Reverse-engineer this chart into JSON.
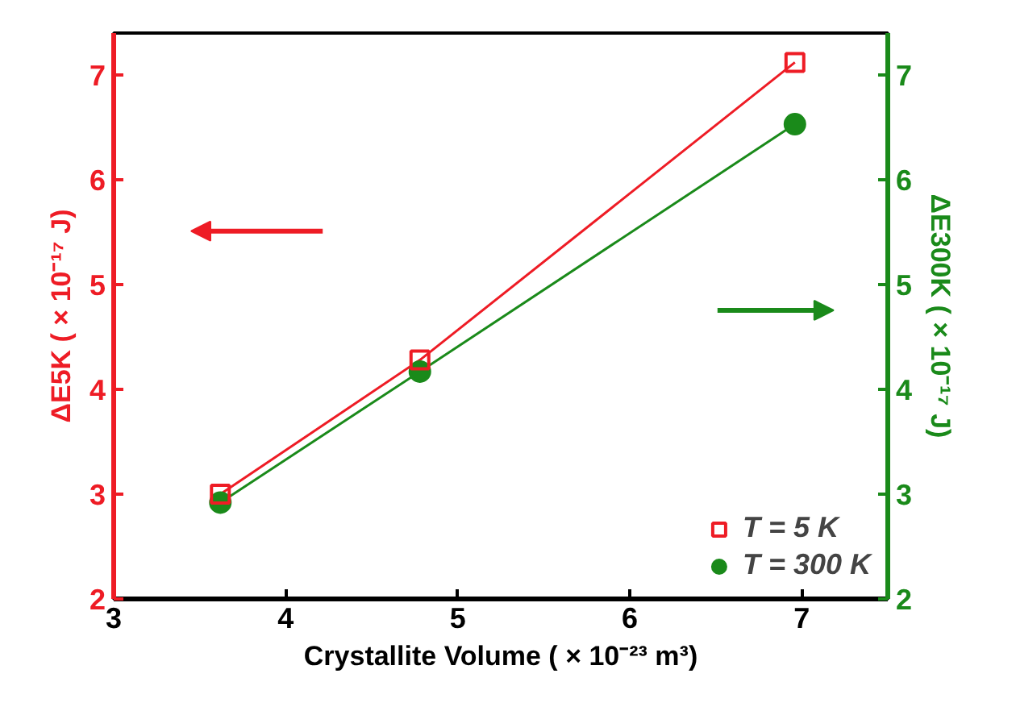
{
  "chart_data": {
    "type": "line",
    "xlabel": "Crystallite Volume ( × 10⁻²³ m³)",
    "ylabel": "ΔE5K ( × 10⁻¹⁷ J)",
    "y2label": "ΔE300K ( × 10⁻¹⁷ J)",
    "x": [
      3.62,
      4.78,
      6.96
    ],
    "series": [
      {
        "name": "T = 5 K",
        "color": "#ee1c25",
        "marker": "square",
        "axis": "y",
        "values": [
          3.0,
          4.28,
          7.12
        ]
      },
      {
        "name": "T = 300 K",
        "color": "#1a8a1a",
        "marker": "circle",
        "axis": "y2",
        "values": [
          2.92,
          4.17,
          6.53
        ]
      }
    ],
    "xlim": [
      3,
      7.5
    ],
    "xticks": [
      3,
      4,
      5,
      6,
      7
    ],
    "ylim": [
      2,
      7.4
    ],
    "yticks": [
      2,
      3,
      4,
      5,
      6,
      7
    ],
    "y2lim": [
      2,
      7.4
    ],
    "y2ticks": [
      2,
      3,
      4,
      5,
      6,
      7
    ],
    "grid": false,
    "legend": "bottom right",
    "line_style": "solid"
  }
}
